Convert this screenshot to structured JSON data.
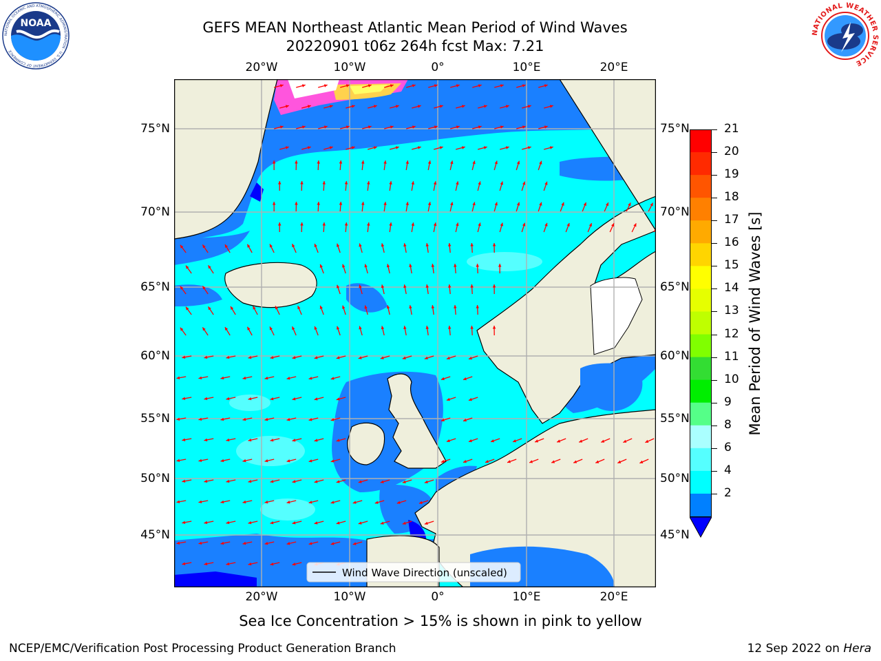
{
  "header": {
    "title_line1": "GEFS MEAN Northeast Atlantic Mean Period of Wind Waves",
    "title_line2": "20220901 t06z 264h fcst   Max: 7.21"
  },
  "logos": {
    "noaa_text": "NOAA",
    "noaa_ring_text": "NATIONAL OCEANIC AND ATMOSPHERIC ADMINISTRATION · U.S. DEPARTMENT OF COMMERCE",
    "nws_ring_text": "NATIONAL WEATHER SERVICE"
  },
  "axes": {
    "lon_ticks": [
      "20°W",
      "10°W",
      "0°",
      "10°E",
      "20°E"
    ],
    "lat_ticks": [
      "75°N",
      "70°N",
      "65°N",
      "60°N",
      "55°N",
      "50°N",
      "45°N"
    ]
  },
  "legend": {
    "label": "Wind Wave Direction (unscaled)"
  },
  "colorbar": {
    "title": "Mean Period of Wind Waves [s]",
    "ticks": [
      "21",
      "20",
      "19",
      "18",
      "17",
      "16",
      "15",
      "14",
      "13",
      "12",
      "11",
      "10",
      "9",
      "8",
      "6",
      "4",
      "2"
    ],
    "colors": [
      "#ff0000",
      "#ff2a00",
      "#ff5500",
      "#ff8000",
      "#ffaa00",
      "#ffd500",
      "#ffff00",
      "#e6ff00",
      "#bfff00",
      "#80ff00",
      "#33dd33",
      "#00ee00",
      "#55ff88",
      "#aaffff",
      "#55ffff",
      "#00ffff",
      "#0080ff"
    ],
    "extend_color": "#0000ff"
  },
  "map_colors": {
    "land": "#efefdc",
    "ice_free_white": "#ffffff",
    "period_2_4": "#1a80ff",
    "period_4_6": "#00ffff",
    "period_6_8": "#55ffff",
    "below_2": "#0000ff",
    "arrow": "#ff0000"
  },
  "footer": {
    "note": "Sea Ice Concentration > 15% is shown in pink to yellow",
    "credit": "NCEP/EMC/Verification Post Processing Product Generation Branch",
    "date": "12 Sep 2022 on",
    "host": "Hera"
  }
}
